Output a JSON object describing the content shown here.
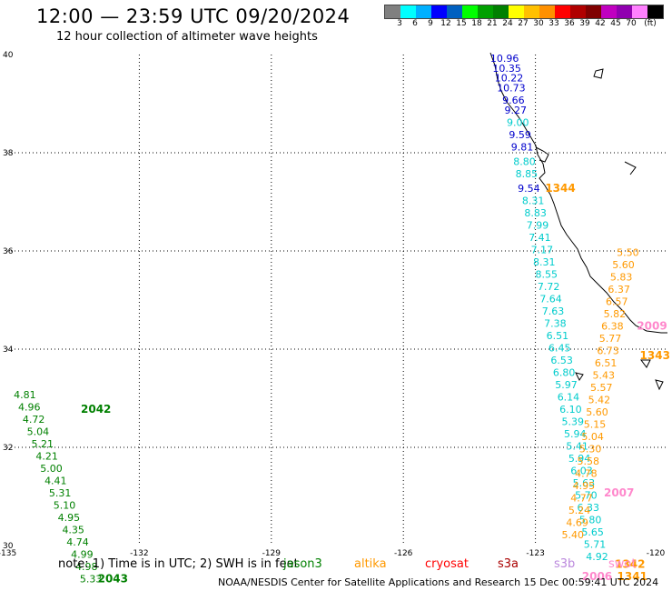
{
  "header": {
    "title": "12:00 — 23:59 UTC 09/20/2024",
    "subtitle": "12 hour collection of altimeter wave heights"
  },
  "legend_bar": {
    "colors": [
      "#808080",
      "#00ffff",
      "#00b0ff",
      "#0000ff",
      "#0060c0",
      "#00ff00",
      "#00a000",
      "#008000",
      "#ffff00",
      "#ffc000",
      "#ff9000",
      "#ff0000",
      "#b00000",
      "#800000",
      "#c000c0",
      "#9000b0",
      "#ff80ff",
      "#000000"
    ],
    "labels": [
      "3",
      "6",
      "9",
      "12",
      "15",
      "18",
      "21",
      "24",
      "27",
      "30",
      "33",
      "36",
      "39",
      "42",
      "45",
      "70",
      "(ft)"
    ]
  },
  "map": {
    "lat_labels": [
      "40",
      "38",
      "36",
      "34",
      "32",
      "30"
    ],
    "lon_labels": [
      "-135",
      "-132",
      "-129",
      "-126",
      "-123",
      "-120"
    ],
    "passes": [
      {
        "label": "1344",
        "color": "#ff9900",
        "lon": -123.15,
        "lat": 37.2,
        "color_points": "#0000cc",
        "points": [
          {
            "v": "10.96",
            "lon": -123.7,
            "lat": 39.85
          },
          {
            "v": "10.35",
            "lon": -123.65,
            "lat": 39.65
          },
          {
            "v": "10.22",
            "lon": -123.6,
            "lat": 39.45
          },
          {
            "v": "10.73",
            "lon": -123.55,
            "lat": 39.25
          },
          {
            "v": "9.66",
            "lon": -123.5,
            "lat": 39.0
          },
          {
            "v": "9.27",
            "lon": -123.45,
            "lat": 38.8
          },
          {
            "v": "9.59",
            "lon": -123.35,
            "lat": 38.3
          },
          {
            "v": "9.81",
            "lon": -123.3,
            "lat": 38.05
          },
          {
            "v": "9.54",
            "lon": -123.15,
            "lat": 37.2
          }
        ]
      },
      {
        "label": "",
        "color": "#00cccc",
        "points": [
          {
            "v": "9.00",
            "lon": -123.4,
            "lat": 38.55
          },
          {
            "v": "8.80",
            "lon": -123.25,
            "lat": 37.75
          },
          {
            "v": "8.85",
            "lon": -123.2,
            "lat": 37.5
          },
          {
            "v": "8.31",
            "lon": -123.05,
            "lat": 36.95
          },
          {
            "v": "8.83",
            "lon": -123.0,
            "lat": 36.7
          },
          {
            "v": "7.99",
            "lon": -122.95,
            "lat": 36.45
          },
          {
            "v": "7.41",
            "lon": -122.9,
            "lat": 36.2
          },
          {
            "v": "7.17",
            "lon": -122.85,
            "lat": 35.95
          },
          {
            "v": "8.31",
            "lon": -122.8,
            "lat": 35.7
          },
          {
            "v": "8.55",
            "lon": -122.75,
            "lat": 35.45
          },
          {
            "v": "7.72",
            "lon": -122.7,
            "lat": 35.2
          },
          {
            "v": "7.64",
            "lon": -122.65,
            "lat": 34.95
          },
          {
            "v": "7.63",
            "lon": -122.6,
            "lat": 34.7
          },
          {
            "v": "7.38",
            "lon": -122.55,
            "lat": 34.45
          },
          {
            "v": "6.51",
            "lon": -122.5,
            "lat": 34.2
          },
          {
            "v": "6.45",
            "lon": -122.45,
            "lat": 33.95
          },
          {
            "v": "6.53",
            "lon": -122.4,
            "lat": 33.7
          },
          {
            "v": "6.80",
            "lon": -122.35,
            "lat": 33.45
          },
          {
            "v": "5.97",
            "lon": -122.3,
            "lat": 33.2
          },
          {
            "v": "6.14",
            "lon": -122.25,
            "lat": 32.95
          },
          {
            "v": "6.10",
            "lon": -122.2,
            "lat": 32.7
          },
          {
            "v": "5.39",
            "lon": -122.15,
            "lat": 32.45
          },
          {
            "v": "5.94",
            "lon": -122.1,
            "lat": 32.2
          },
          {
            "v": "5.41",
            "lon": -122.05,
            "lat": 31.95
          },
          {
            "v": "5.94",
            "lon": -122.0,
            "lat": 31.7
          },
          {
            "v": "6.03",
            "lon": -121.95,
            "lat": 31.45
          },
          {
            "v": "5.63",
            "lon": -121.9,
            "lat": 31.2
          },
          {
            "v": "5.70",
            "lon": -121.85,
            "lat": 30.95
          },
          {
            "v": "6.33",
            "lon": -121.8,
            "lat": 30.7
          },
          {
            "v": "5.80",
            "lon": -121.75,
            "lat": 30.45
          },
          {
            "v": "5.65",
            "lon": -121.7,
            "lat": 30.2
          },
          {
            "v": "5.71",
            "lon": -121.65,
            "lat": 29.95
          },
          {
            "v": "4.92",
            "lon": -121.6,
            "lat": 29.7
          }
        ]
      },
      {
        "label": "1343",
        "color": "#ff9900",
        "lon": -121.0,
        "lat": 33.8,
        "points": [
          {
            "v": "5.50",
            "lon": -120.9,
            "lat": 35.9
          },
          {
            "v": "5.60",
            "lon": -121.0,
            "lat": 35.65
          },
          {
            "v": "5.83",
            "lon": -121.05,
            "lat": 35.4
          },
          {
            "v": "6.37",
            "lon": -121.1,
            "lat": 35.15
          },
          {
            "v": "6.57",
            "lon": -121.15,
            "lat": 34.9
          },
          {
            "v": "5.82",
            "lon": -121.2,
            "lat": 34.65
          },
          {
            "v": "6.38",
            "lon": -121.25,
            "lat": 34.4
          },
          {
            "v": "5.77",
            "lon": -121.3,
            "lat": 34.15
          },
          {
            "v": "6.73",
            "lon": -121.35,
            "lat": 33.9
          },
          {
            "v": "6.51",
            "lon": -121.4,
            "lat": 33.65
          },
          {
            "v": "5.43",
            "lon": -121.45,
            "lat": 33.4
          },
          {
            "v": "5.57",
            "lon": -121.5,
            "lat": 33.15
          },
          {
            "v": "5.42",
            "lon": -121.55,
            "lat": 32.9
          },
          {
            "v": "5.60",
            "lon": -121.6,
            "lat": 32.65
          },
          {
            "v": "5.15",
            "lon": -121.65,
            "lat": 32.4
          },
          {
            "v": "5.04",
            "lon": -121.7,
            "lat": 32.15
          },
          {
            "v": "5.30",
            "lon": -121.75,
            "lat": 31.9
          },
          {
            "v": "5.58",
            "lon": -121.8,
            "lat": 31.65
          },
          {
            "v": "4.78",
            "lon": -121.85,
            "lat": 31.4
          },
          {
            "v": "4.95",
            "lon": -121.9,
            "lat": 31.15
          },
          {
            "v": "4.77",
            "lon": -121.95,
            "lat": 30.9
          },
          {
            "v": "5.24",
            "lon": -122.0,
            "lat": 30.65
          },
          {
            "v": "4.69",
            "lon": -122.05,
            "lat": 30.4
          },
          {
            "v": "5.40",
            "lon": -122.15,
            "lat": 30.15
          }
        ]
      },
      {
        "label": "2042",
        "color": "#008000",
        "lon": -133.7,
        "lat": 32.7,
        "points": [
          {
            "v": "4.81",
            "lon": -134.6,
            "lat": 33.0
          },
          {
            "v": "4.96",
            "lon": -134.5,
            "lat": 32.75
          },
          {
            "v": "4.72",
            "lon": -134.4,
            "lat": 32.5
          },
          {
            "v": "5.04",
            "lon": -134.3,
            "lat": 32.25
          },
          {
            "v": "5.21",
            "lon": -134.2,
            "lat": 32.0
          },
          {
            "v": "4.21",
            "lon": -134.1,
            "lat": 31.75
          },
          {
            "v": "5.00",
            "lon": -134.0,
            "lat": 31.5
          },
          {
            "v": "4.41",
            "lon": -133.9,
            "lat": 31.25
          },
          {
            "v": "5.31",
            "lon": -133.8,
            "lat": 31.0
          },
          {
            "v": "5.10",
            "lon": -133.7,
            "lat": 30.75
          },
          {
            "v": "4.95",
            "lon": -133.6,
            "lat": 30.5
          },
          {
            "v": "4.35",
            "lon": -133.5,
            "lat": 30.25
          },
          {
            "v": "4.74",
            "lon": -133.4,
            "lat": 30.0
          },
          {
            "v": "4.99",
            "lon": -133.3,
            "lat": 29.75
          },
          {
            "v": "4.98",
            "lon": -133.2,
            "lat": 29.5
          },
          {
            "v": "5.33",
            "lon": -133.1,
            "lat": 29.25
          }
        ]
      }
    ],
    "track_labels": [
      {
        "label": "2043",
        "color": "#008000",
        "lon": -132.6,
        "lat": 29.25
      },
      {
        "label": "2009",
        "color": "#ff88cc",
        "lon": -120.35,
        "lat": 34.4
      },
      {
        "label": "2007",
        "color": "#ff88cc",
        "lon": -121.1,
        "lat": 31.0
      },
      {
        "label": "2006",
        "color": "#ff88cc",
        "lon": -121.6,
        "lat": 29.3
      },
      {
        "label": "1342",
        "color": "#ff9900",
        "lon": -120.85,
        "lat": 29.55
      },
      {
        "label": "1341",
        "color": "#ff9900",
        "lon": -120.8,
        "lat": 29.3
      }
    ]
  },
  "footer_note": {
    "prefix": "note: 1) Time is in UTC; 2) SWH is in feet",
    "satellites": [
      {
        "name": "jason3",
        "color": "#008000"
      },
      {
        "name": "altika",
        "color": "#ff9900"
      },
      {
        "name": "cryosat",
        "color": "#ff0000"
      },
      {
        "name": "s3a",
        "color": "#aa0000"
      },
      {
        "name": "s3b",
        "color": "#bb88dd"
      },
      {
        "name": "swot",
        "color": "#ff88cc"
      }
    ]
  },
  "credit": "NOAA/NESDIS Center for Satellite Applications and Research   15 Dec 00:59:41 UTC 2024"
}
